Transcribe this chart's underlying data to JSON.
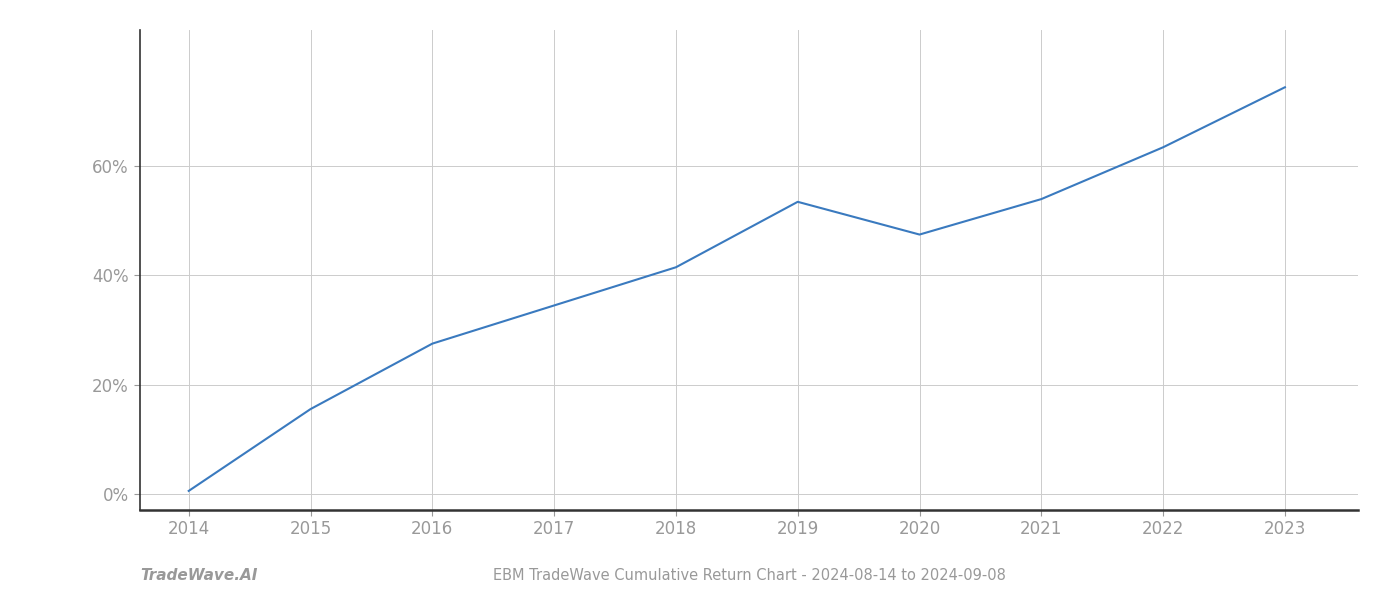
{
  "x_years": [
    2014,
    2015,
    2016,
    2017,
    2018,
    2019,
    2020,
    2021,
    2022,
    2023
  ],
  "y_values": [
    0.005,
    0.155,
    0.275,
    0.345,
    0.415,
    0.535,
    0.475,
    0.54,
    0.635,
    0.745
  ],
  "line_color": "#3a7abf",
  "line_width": 1.5,
  "background_color": "#ffffff",
  "grid_color": "#cccccc",
  "tick_color": "#999999",
  "spine_color": "#333333",
  "title_text": "EBM TradeWave Cumulative Return Chart - 2024-08-14 to 2024-09-08",
  "watermark_text": "TradeWave.AI",
  "xlim": [
    2013.6,
    2023.6
  ],
  "ylim": [
    -0.03,
    0.85
  ],
  "yticks": [
    0.0,
    0.2,
    0.4,
    0.6
  ],
  "ytick_labels": [
    "0%",
    "20%",
    "40%",
    "60%"
  ],
  "xticks": [
    2014,
    2015,
    2016,
    2017,
    2018,
    2019,
    2020,
    2021,
    2022,
    2023
  ],
  "title_fontsize": 10.5,
  "watermark_fontsize": 11,
  "tick_fontsize": 12
}
